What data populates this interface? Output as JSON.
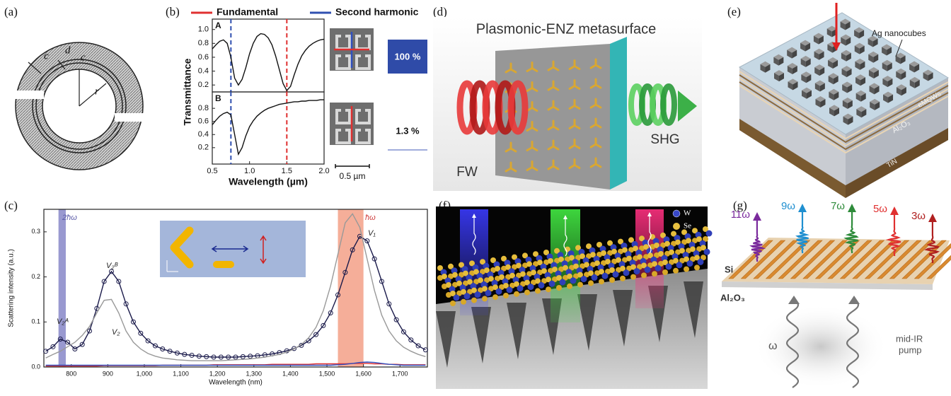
{
  "chart_data": [
    {
      "type": "line",
      "title": "A",
      "y_label": "Transmittance",
      "x": [
        0.5,
        0.55,
        0.6,
        0.65,
        0.7,
        0.75,
        0.8,
        0.85,
        0.9,
        0.95,
        1.0,
        1.05,
        1.1,
        1.15,
        1.2,
        1.25,
        1.3,
        1.35,
        1.4,
        1.45,
        1.5,
        1.55,
        1.6,
        1.65,
        1.7,
        1.75,
        1.8,
        1.85,
        1.9,
        1.95,
        2.0
      ],
      "series": [
        {
          "color": "#111111",
          "values": [
            0.72,
            0.78,
            0.83,
            0.85,
            0.8,
            0.6,
            0.3,
            0.2,
            0.28,
            0.45,
            0.65,
            0.8,
            0.9,
            0.94,
            0.93,
            0.88,
            0.78,
            0.62,
            0.42,
            0.22,
            0.12,
            0.18,
            0.35,
            0.5,
            0.62,
            0.7,
            0.76,
            0.8,
            0.83,
            0.85,
            0.86
          ]
        }
      ],
      "vlines": [
        {
          "name": "Fundamental",
          "color": "#e03030",
          "x": 1.5
        },
        {
          "name": "Second harmonic",
          "color": "#3050b0",
          "x": 0.75
        }
      ],
      "xlim": [
        0.5,
        2.0
      ],
      "ylim": [
        0.1,
        1.15
      ],
      "yticks": [
        0.2,
        0.4,
        0.6,
        0.8,
        {
          "value": 1,
          "label": "1.0"
        }
      ]
    },
    {
      "type": "line",
      "title": "B",
      "x_label": "Wavelength (µm)",
      "x": [
        0.5,
        0.55,
        0.6,
        0.65,
        0.7,
        0.75,
        0.8,
        0.85,
        0.9,
        0.95,
        1.0,
        1.05,
        1.1,
        1.15,
        1.2,
        1.25,
        1.3,
        1.35,
        1.4,
        1.45,
        1.5,
        1.55,
        1.6,
        1.65,
        1.7,
        1.75,
        1.8,
        1.85,
        1.9,
        1.95,
        2.0
      ],
      "series": [
        {
          "color": "#111111",
          "values": [
            0.55,
            0.62,
            0.68,
            0.72,
            0.74,
            0.7,
            0.4,
            0.1,
            0.2,
            0.38,
            0.52,
            0.61,
            0.68,
            0.73,
            0.77,
            0.8,
            0.82,
            0.84,
            0.86,
            0.87,
            0.88,
            0.89,
            0.9,
            0.9,
            0.91,
            0.91,
            0.92,
            0.92,
            0.92,
            0.93,
            0.93
          ]
        }
      ],
      "vlines": [
        {
          "color": "#e03030",
          "x": 1.5
        },
        {
          "color": "#3050b0",
          "x": 0.75
        }
      ],
      "xlim": [
        0.5,
        2.0
      ],
      "ylim": [
        -0.05,
        1.05
      ],
      "xticks": [
        0.5,
        {
          "value": 1,
          "label": "1.0"
        },
        1.5,
        {
          "value": 2,
          "label": "2.0"
        }
      ],
      "yticks": [
        0.2,
        0.4,
        0.6,
        0.8
      ]
    },
    {
      "type": "line",
      "x_label": "Wavelength (nm)",
      "y_label": "Scattering intensity (a.u.)",
      "annotations": [
        "2ħω",
        "ħω",
        "V₂ᴬ",
        "V₂ᴮ",
        "V₂",
        "V₁"
      ],
      "bands": [
        {
          "from": 765,
          "to": 785,
          "color": "#7f80c4"
        },
        {
          "from": 1530,
          "to": 1600,
          "color": "#f29a80"
        }
      ],
      "x": [
        730,
        750,
        770,
        790,
        810,
        830,
        850,
        870,
        890,
        910,
        930,
        950,
        970,
        990,
        1010,
        1030,
        1050,
        1070,
        1090,
        1110,
        1130,
        1150,
        1170,
        1190,
        1210,
        1230,
        1250,
        1270,
        1290,
        1310,
        1330,
        1350,
        1370,
        1390,
        1410,
        1430,
        1450,
        1470,
        1490,
        1510,
        1530,
        1550,
        1570,
        1590,
        1610,
        1630,
        1650,
        1670,
        1690,
        1710,
        1730,
        1750,
        1770
      ],
      "series": [
        {
          "color": "#1a1a4a",
          "marker": "circle",
          "values": [
            0.035,
            0.045,
            0.062,
            0.055,
            0.04,
            0.05,
            0.08,
            0.13,
            0.19,
            0.212,
            0.19,
            0.14,
            0.1,
            0.075,
            0.058,
            0.047,
            0.04,
            0.035,
            0.031,
            0.028,
            0.026,
            0.024,
            0.023,
            0.022,
            0.022,
            0.022,
            0.022,
            0.023,
            0.024,
            0.025,
            0.027,
            0.029,
            0.032,
            0.036,
            0.041,
            0.048,
            0.058,
            0.072,
            0.092,
            0.12,
            0.16,
            0.21,
            0.26,
            0.29,
            0.28,
            0.24,
            0.19,
            0.14,
            0.105,
            0.078,
            0.06,
            0.047,
            0.038
          ]
        },
        {
          "color": "#999999",
          "values": [
            0.02,
            0.028,
            0.035,
            0.045,
            0.055,
            0.07,
            0.09,
            0.12,
            0.148,
            0.15,
            0.12,
            0.08,
            0.055,
            0.04,
            0.03,
            0.024,
            0.02,
            0.018,
            0.016,
            0.015,
            0.014,
            0.014,
            0.014,
            0.014,
            0.014,
            0.015,
            0.016,
            0.017,
            0.018,
            0.02,
            0.022,
            0.025,
            0.028,
            0.033,
            0.04,
            0.05,
            0.065,
            0.088,
            0.125,
            0.18,
            0.25,
            0.32,
            0.34,
            0.31,
            0.24,
            0.17,
            0.115,
            0.08,
            0.058,
            0.044,
            0.035,
            0.028,
            0.023
          ]
        },
        {
          "color": "#e03030",
          "values": [
            0.002,
            0.002,
            0.002,
            0.002,
            0.002,
            0.002,
            0.002,
            0.002,
            0.003,
            0.003,
            0.003,
            0.003,
            0.003,
            0.003,
            0.003,
            0.003,
            0.004,
            0.004,
            0.004,
            0.004,
            0.004,
            0.004,
            0.004,
            0.005,
            0.005,
            0.005,
            0.005,
            0.005,
            0.005,
            0.005,
            0.005,
            0.006,
            0.006,
            0.006,
            0.006,
            0.006,
            0.006,
            0.007,
            0.007,
            0.007,
            0.007,
            0.007,
            0.008,
            0.008,
            0.008,
            0.007,
            0.007,
            0.006,
            0.006,
            0.005,
            0.005,
            0.005,
            0.005
          ]
        },
        {
          "color": "#3050c0",
          "values": [
            0.004,
            0.004,
            0.004,
            0.004,
            0.004,
            0.004,
            0.004,
            0.004,
            0.004,
            0.004,
            0.004,
            0.004,
            0.004,
            0.004,
            0.004,
            0.004,
            0.004,
            0.004,
            0.004,
            0.004,
            0.004,
            0.004,
            0.004,
            0.004,
            0.004,
            0.004,
            0.004,
            0.004,
            0.004,
            0.004,
            0.004,
            0.004,
            0.004,
            0.004,
            0.004,
            0.004,
            0.004,
            0.004,
            0.004,
            0.004,
            0.005,
            0.006,
            0.008,
            0.01,
            0.011,
            0.01,
            0.008,
            0.006,
            0.005,
            0.004,
            0.004,
            0.004,
            0.004
          ]
        }
      ],
      "xlim": [
        725,
        1775
      ],
      "ylim": [
        0,
        0.35
      ],
      "xticks": [
        800,
        900,
        {
          "value": 1000,
          "label": "1,000"
        },
        {
          "value": 1100,
          "label": "1,100"
        },
        {
          "value": 1200,
          "label": "1,200"
        },
        {
          "value": 1300,
          "label": "1,300"
        },
        {
          "value": 1400,
          "label": "1,400"
        },
        {
          "value": 1500,
          "label": "1,500"
        },
        {
          "value": 1600,
          "label": "1,600"
        },
        {
          "value": 1700,
          "label": "1,700"
        }
      ],
      "yticks": [
        {
          "value": 0,
          "label": "0.0"
        },
        0.1,
        0.2,
        0.3
      ]
    }
  ],
  "panels": {
    "a": {
      "label": "(a)",
      "symbols": [
        "c",
        "d",
        "c",
        "r"
      ]
    },
    "b": {
      "label": "(b)",
      "efficiencies": [
        "100 %",
        "1.3 %"
      ],
      "scale_bar": "0.5 µm"
    },
    "c": {
      "label": "(c)"
    },
    "d": {
      "label": "(d)",
      "title": "Plasmonic-ENZ metasurface",
      "input": "FW",
      "output": "SHG"
    },
    "e": {
      "label": "(e)",
      "labels": [
        "Ag nanocubes",
        "eMQWs",
        "Al₂O₃",
        "TiN"
      ]
    },
    "f": {
      "label": "(f)",
      "legend": [
        "W",
        "Se"
      ]
    },
    "g": {
      "label": "(g)",
      "harmonics": [
        "11ω",
        "9ω",
        "7ω",
        "5ω",
        "3ω"
      ],
      "layers": [
        "Si",
        "Al₂O₃"
      ],
      "pump_frequency": "ω",
      "pump": [
        "mid-IR",
        "pump"
      ]
    }
  }
}
